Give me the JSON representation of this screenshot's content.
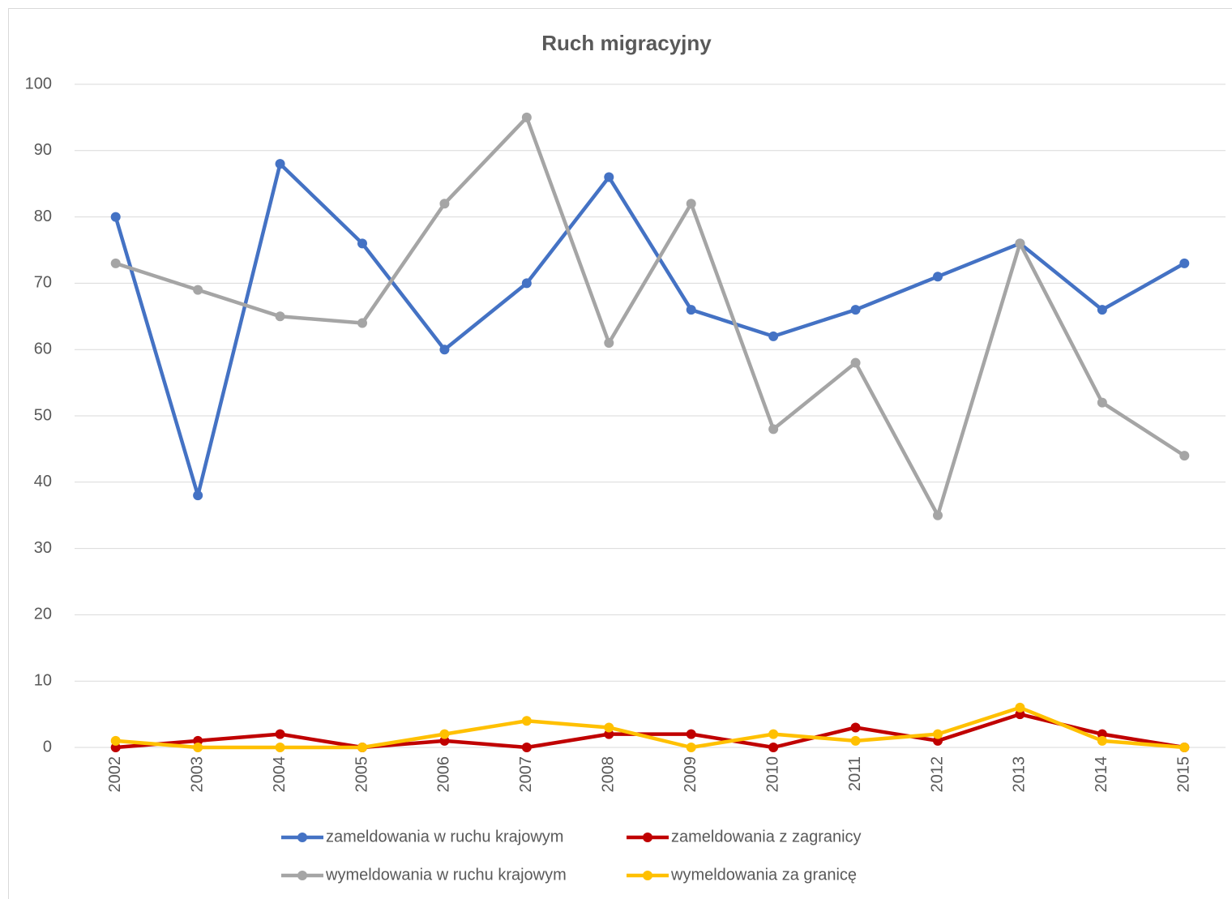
{
  "chart_data": {
    "type": "line",
    "title": "Ruch migracyjny",
    "categories": [
      "2002",
      "2003",
      "2004",
      "2005",
      "2006",
      "2007",
      "2008",
      "2009",
      "2010",
      "2011",
      "2012",
      "2013",
      "2014",
      "2015"
    ],
    "series": [
      {
        "name": "zameldowania w ruchu krajowym",
        "color": "#4472c4",
        "values": [
          80,
          38,
          88,
          76,
          60,
          70,
          86,
          66,
          62,
          66,
          71,
          76,
          66,
          73
        ]
      },
      {
        "name": "zameldowania z zagranicy",
        "color": "#c00000",
        "values": [
          0,
          1,
          2,
          0,
          1,
          0,
          2,
          2,
          0,
          3,
          1,
          5,
          2,
          0
        ]
      },
      {
        "name": "wymeldowania w ruchu krajowym",
        "color": "#a5a5a5",
        "values": [
          73,
          69,
          65,
          64,
          82,
          95,
          61,
          82,
          48,
          58,
          35,
          76,
          52,
          44
        ]
      },
      {
        "name": "wymeldowania za granicę",
        "color": "#ffc000",
        "values": [
          1,
          0,
          0,
          0,
          2,
          4,
          3,
          0,
          2,
          1,
          2,
          6,
          1,
          0
        ]
      }
    ],
    "ylim": [
      0,
      100
    ],
    "yticks": [
      0,
      10,
      20,
      30,
      40,
      50,
      60,
      70,
      80,
      90,
      100
    ],
    "grid": true
  }
}
